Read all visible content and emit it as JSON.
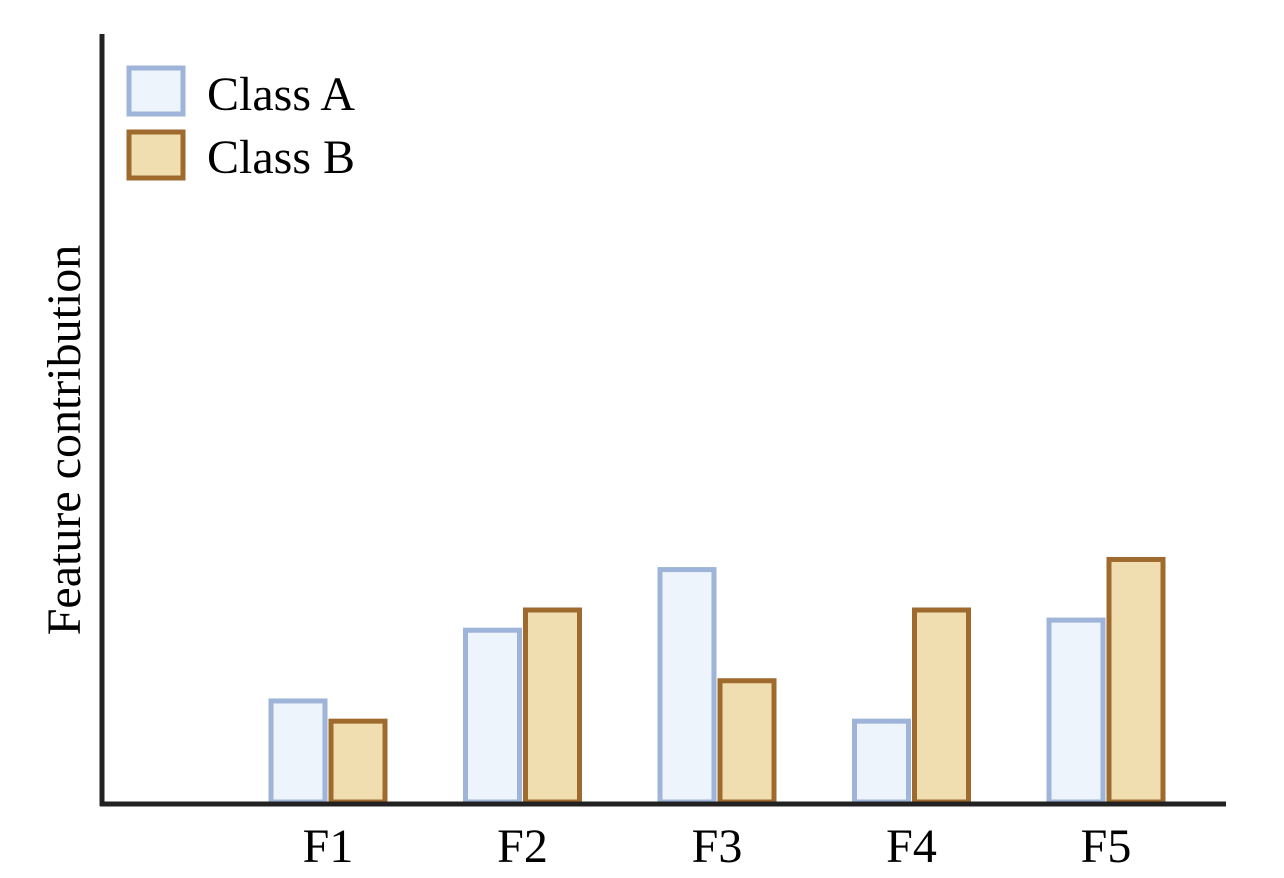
{
  "chart_data": {
    "type": "bar",
    "title": "",
    "xlabel": "",
    "ylabel": "Feature contribution",
    "categories": [
      "F1",
      "F2",
      "F3",
      "F4",
      "F5"
    ],
    "series": [
      {
        "name": "Class A",
        "values": [
          1.0,
          1.7,
          2.3,
          0.8,
          1.8
        ],
        "fill": "#edf4fc",
        "stroke": "#9eb4d8"
      },
      {
        "name": "Class B",
        "values": [
          0.8,
          1.9,
          1.2,
          1.9,
          2.4
        ],
        "fill": "#f1deb0",
        "stroke": "#9e6a2e"
      }
    ],
    "ylim": [
      0,
      7.6
    ],
    "grid": false,
    "legend": "top-left"
  }
}
